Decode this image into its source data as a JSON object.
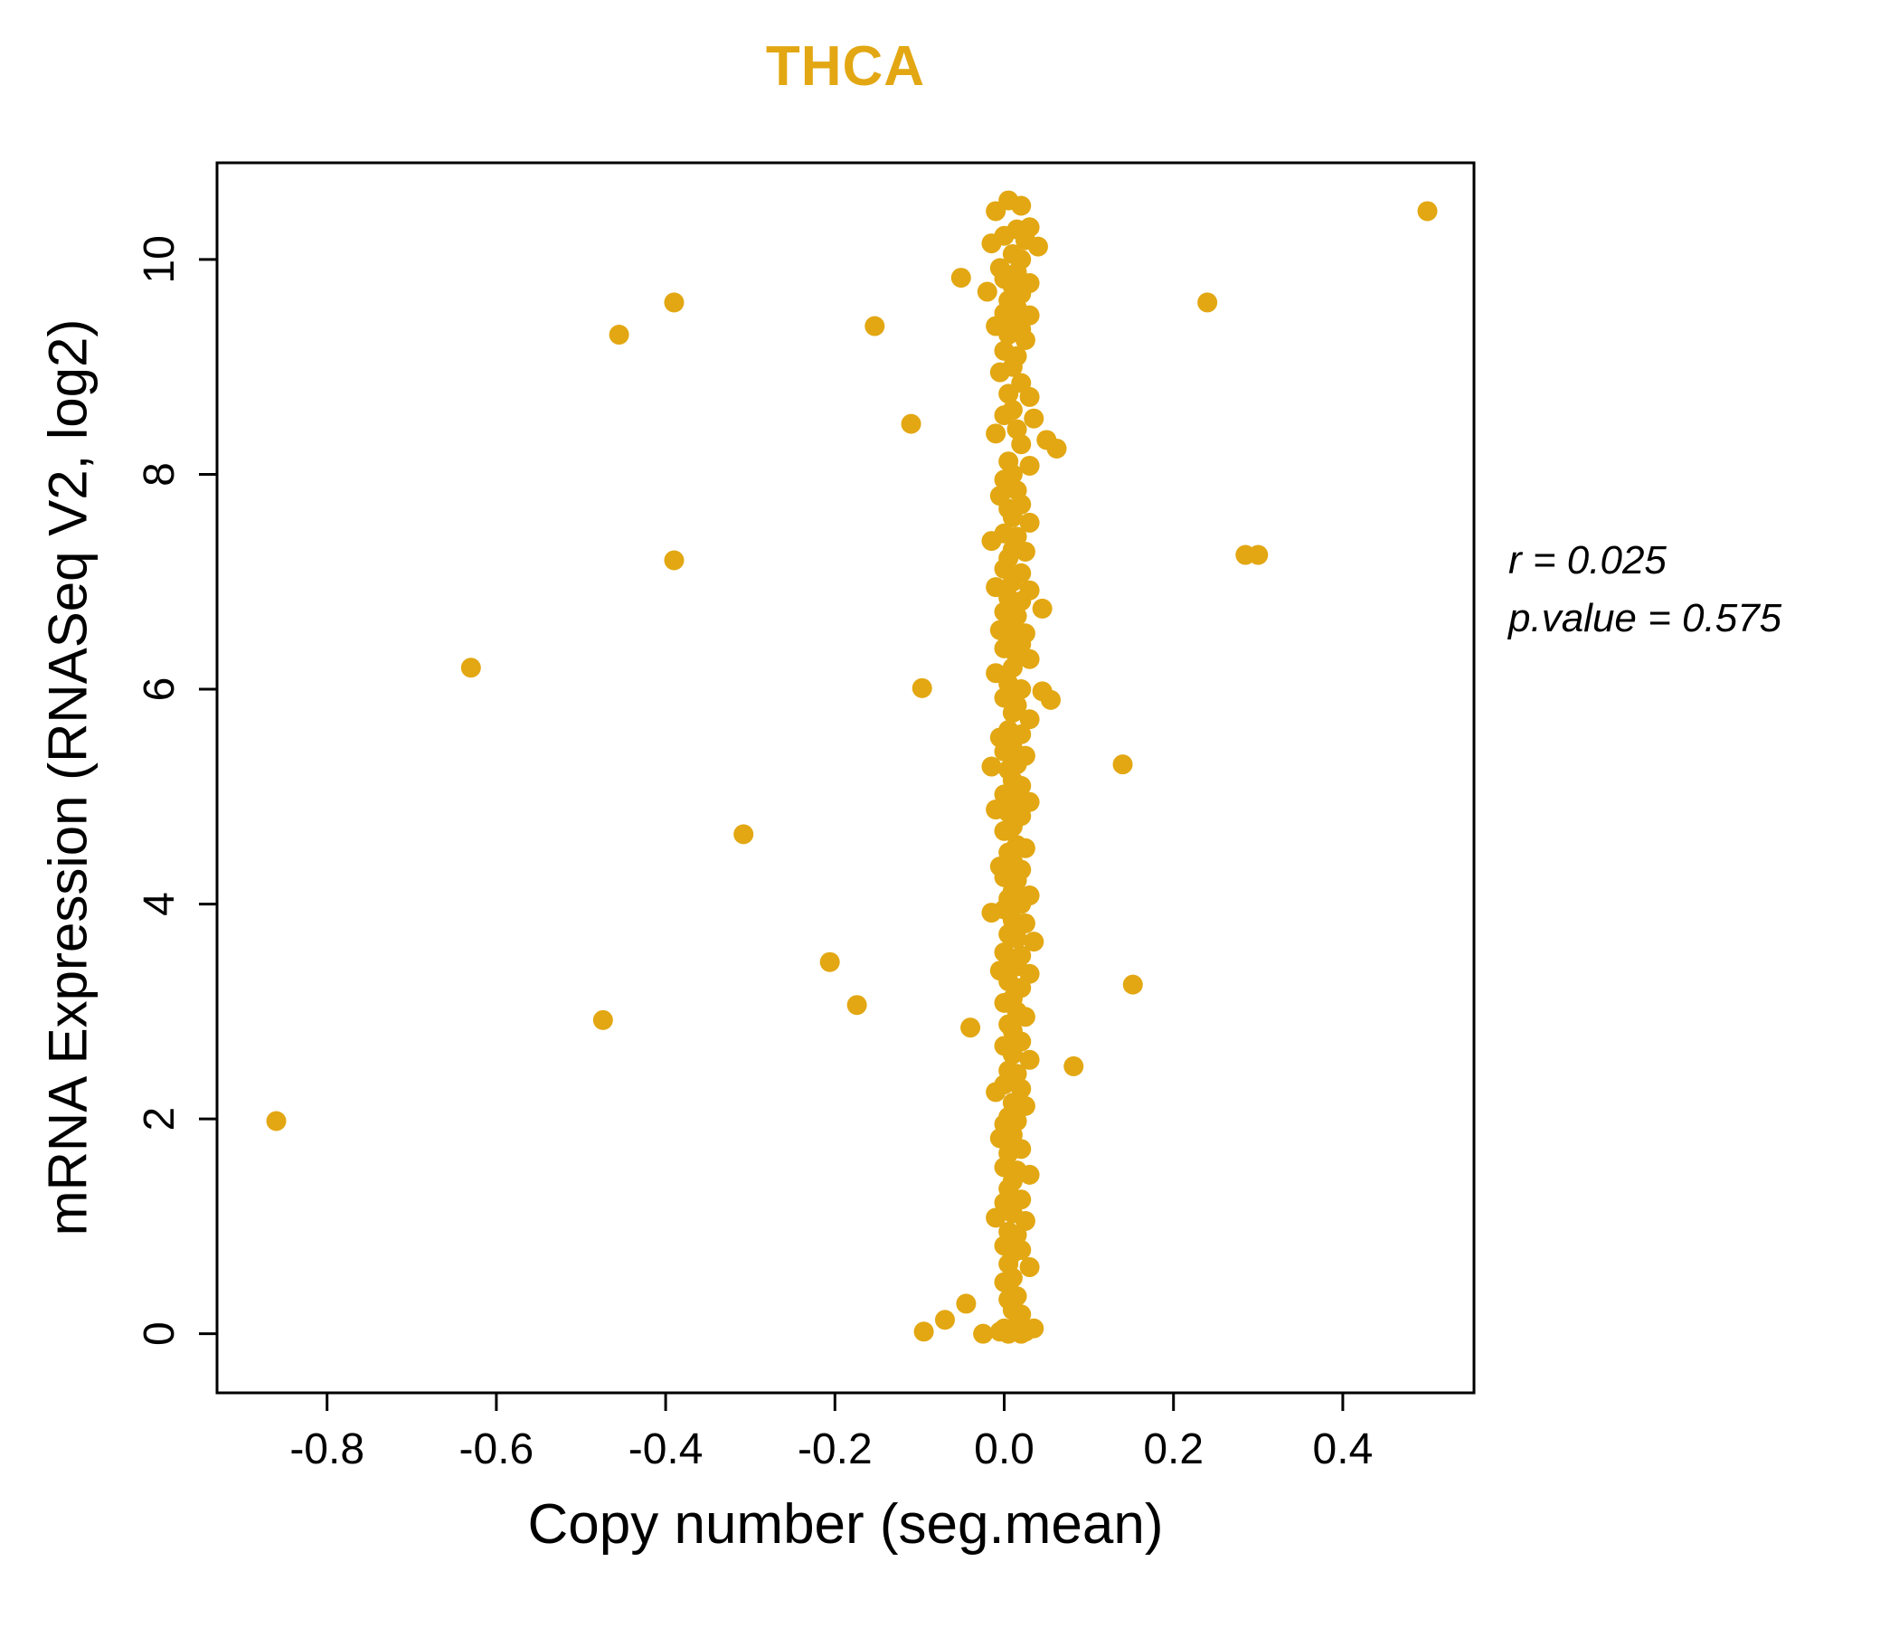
{
  "title": "THCA",
  "accent_color": "#E2A712",
  "axes": {
    "xlabel": "Copy number (seg.mean)",
    "ylabel": "mRNA Expression (RNASeq V2, log2)"
  },
  "annotation": {
    "line1": "r = 0.025",
    "line2": "p.value = 0.575"
  },
  "chart_data": {
    "type": "scatter",
    "title": "THCA",
    "xlabel": "Copy number (seg.mean)",
    "ylabel": "mRNA Expression (RNASeq V2, log2)",
    "legend": "none",
    "grid": false,
    "point_color": "#E2A712",
    "r": 0.025,
    "p_value": 0.575,
    "xlim": [
      -0.93,
      0.555
    ],
    "ylim": [
      -0.55,
      10.9
    ],
    "x_ticks": [
      -0.8,
      -0.6,
      -0.4,
      -0.2,
      0,
      0.2,
      0.4
    ],
    "x_tick_labels": [
      "-0.8",
      "-0.6",
      "-0.4",
      "-0.2",
      "0.0",
      "0.2",
      "0.4"
    ],
    "y_ticks": [
      0,
      2,
      4,
      6,
      8,
      10
    ],
    "y_tick_labels": [
      "0",
      "2",
      "4",
      "6",
      "8",
      "10"
    ],
    "points": [
      [
        -0.86,
        1.98
      ],
      [
        -0.63,
        6.2
      ],
      [
        -0.474,
        2.92
      ],
      [
        -0.455,
        9.3
      ],
      [
        -0.39,
        9.6
      ],
      [
        -0.39,
        7.2
      ],
      [
        -0.308,
        4.65
      ],
      [
        -0.206,
        3.46
      ],
      [
        -0.174,
        3.06
      ],
      [
        -0.153,
        9.38
      ],
      [
        -0.11,
        8.47
      ],
      [
        -0.097,
        6.01
      ],
      [
        -0.095,
        0.02
      ],
      [
        -0.07,
        0.13
      ],
      [
        -0.051,
        9.83
      ],
      [
        -0.045,
        0.28
      ],
      [
        -0.04,
        2.85
      ],
      [
        0.082,
        2.49
      ],
      [
        0.14,
        5.3
      ],
      [
        0.152,
        3.25
      ],
      [
        0.24,
        9.6
      ],
      [
        0.285,
        7.25
      ],
      [
        0.3,
        7.25
      ],
      [
        0.5,
        10.45
      ],
      [
        0.05,
        8.32
      ],
      [
        0.062,
        8.24
      ],
      [
        0.055,
        5.9
      ],
      [
        0.045,
        6.75
      ],
      [
        0.045,
        5.98
      ],
      [
        0.005,
        10.55
      ],
      [
        0.02,
        10.5
      ],
      [
        -0.01,
        10.45
      ],
      [
        0.03,
        10.3
      ],
      [
        0.015,
        10.28
      ],
      [
        0.0,
        10.22
      ],
      [
        0.025,
        10.18
      ],
      [
        -0.015,
        10.15
      ],
      [
        0.04,
        10.12
      ],
      [
        0.01,
        10.05
      ],
      [
        0.02,
        10.0
      ],
      [
        -0.005,
        9.92
      ],
      [
        0.015,
        9.88
      ],
      [
        0.0,
        9.82
      ],
      [
        0.03,
        9.78
      ],
      [
        0.01,
        9.75
      ],
      [
        -0.02,
        9.7
      ],
      [
        0.02,
        9.68
      ],
      [
        0.005,
        9.62
      ],
      [
        0.015,
        9.55
      ],
      [
        0.0,
        9.5
      ],
      [
        0.03,
        9.48
      ],
      [
        0.01,
        9.42
      ],
      [
        -0.01,
        9.38
      ],
      [
        0.02,
        9.35
      ],
      [
        0.005,
        9.3
      ],
      [
        0.025,
        9.25
      ],
      [
        0.0,
        9.15
      ],
      [
        0.015,
        9.1
      ],
      [
        0.01,
        9.0
      ],
      [
        -0.005,
        8.95
      ],
      [
        0.02,
        8.85
      ],
      [
        0.005,
        8.75
      ],
      [
        0.03,
        8.72
      ],
      [
        0.01,
        8.6
      ],
      [
        0.0,
        8.55
      ],
      [
        0.035,
        8.52
      ],
      [
        0.015,
        8.42
      ],
      [
        -0.01,
        8.38
      ],
      [
        0.02,
        8.28
      ],
      [
        0.005,
        8.12
      ],
      [
        0.03,
        8.08
      ],
      [
        0.01,
        8.0
      ],
      [
        0.0,
        7.95
      ],
      [
        0.015,
        7.85
      ],
      [
        -0.005,
        7.8
      ],
      [
        0.02,
        7.72
      ],
      [
        0.005,
        7.68
      ],
      [
        0.01,
        7.6
      ],
      [
        0.03,
        7.55
      ],
      [
        0.0,
        7.45
      ],
      [
        0.015,
        7.42
      ],
      [
        -0.015,
        7.38
      ],
      [
        0.01,
        7.3
      ],
      [
        0.025,
        7.28
      ],
      [
        0.005,
        7.22
      ],
      [
        0.0,
        7.12
      ],
      [
        0.02,
        7.08
      ],
      [
        0.01,
        7.0
      ],
      [
        -0.01,
        6.95
      ],
      [
        0.03,
        6.92
      ],
      [
        0.005,
        6.85
      ],
      [
        0.02,
        6.82
      ],
      [
        0.0,
        6.72
      ],
      [
        0.015,
        6.68
      ],
      [
        0.01,
        6.6
      ],
      [
        -0.005,
        6.55
      ],
      [
        0.025,
        6.52
      ],
      [
        0.005,
        6.45
      ],
      [
        0.02,
        6.42
      ],
      [
        0.0,
        6.38
      ],
      [
        0.015,
        6.3
      ],
      [
        0.03,
        6.28
      ],
      [
        0.01,
        6.2
      ],
      [
        -0.01,
        6.15
      ],
      [
        0.005,
        6.05
      ],
      [
        0.02,
        6.0
      ],
      [
        0.0,
        5.92
      ],
      [
        0.015,
        5.85
      ],
      [
        0.01,
        5.78
      ],
      [
        0.03,
        5.72
      ],
      [
        0.005,
        5.62
      ],
      [
        0.02,
        5.58
      ],
      [
        -0.005,
        5.55
      ],
      [
        0.01,
        5.45
      ],
      [
        0.0,
        5.42
      ],
      [
        0.025,
        5.38
      ],
      [
        0.015,
        5.3
      ],
      [
        0.005,
        5.25
      ],
      [
        -0.015,
        5.28
      ],
      [
        0.01,
        5.15
      ],
      [
        0.02,
        5.1
      ],
      [
        0.0,
        5.02
      ],
      [
        0.015,
        4.98
      ],
      [
        0.03,
        4.95
      ],
      [
        0.005,
        4.85
      ],
      [
        0.02,
        4.82
      ],
      [
        -0.01,
        4.88
      ],
      [
        0.01,
        4.72
      ],
      [
        0.0,
        4.68
      ],
      [
        0.015,
        4.55
      ],
      [
        0.025,
        4.52
      ],
      [
        0.005,
        4.48
      ],
      [
        0.01,
        4.4
      ],
      [
        -0.005,
        4.35
      ],
      [
        0.02,
        4.32
      ],
      [
        0.0,
        4.25
      ],
      [
        0.015,
        4.22
      ],
      [
        0.01,
        4.12
      ],
      [
        0.03,
        4.08
      ],
      [
        0.005,
        4.05
      ],
      [
        0.02,
        4.0
      ],
      [
        0.0,
        3.95
      ],
      [
        -0.015,
        3.92
      ],
      [
        0.01,
        3.85
      ],
      [
        0.025,
        3.82
      ],
      [
        0.005,
        3.72
      ],
      [
        0.015,
        3.68
      ],
      [
        0.035,
        3.65
      ],
      [
        0.0,
        3.55
      ],
      [
        0.02,
        3.52
      ],
      [
        0.01,
        3.48
      ],
      [
        0.015,
        3.42
      ],
      [
        -0.005,
        3.38
      ],
      [
        0.03,
        3.35
      ],
      [
        0.005,
        3.28
      ],
      [
        0.02,
        3.22
      ],
      [
        0.01,
        3.12
      ],
      [
        0.0,
        3.08
      ],
      [
        0.015,
        3.0
      ],
      [
        0.025,
        2.95
      ],
      [
        0.005,
        2.88
      ],
      [
        0.01,
        2.82
      ],
      [
        0.02,
        2.72
      ],
      [
        0.0,
        2.68
      ],
      [
        0.01,
        2.6
      ],
      [
        0.03,
        2.55
      ],
      [
        0.005,
        2.45
      ],
      [
        0.015,
        2.42
      ],
      [
        0.0,
        2.32
      ],
      [
        0.02,
        2.28
      ],
      [
        -0.01,
        2.25
      ],
      [
        0.01,
        2.15
      ],
      [
        0.025,
        2.12
      ],
      [
        0.005,
        2.02
      ],
      [
        0.015,
        1.98
      ],
      [
        0.0,
        1.95
      ],
      [
        0.01,
        1.85
      ],
      [
        -0.005,
        1.82
      ],
      [
        0.02,
        1.72
      ],
      [
        0.005,
        1.68
      ],
      [
        0.0,
        1.55
      ],
      [
        0.015,
        1.52
      ],
      [
        0.03,
        1.48
      ],
      [
        0.01,
        1.42
      ],
      [
        0.005,
        1.35
      ],
      [
        0.02,
        1.25
      ],
      [
        0.0,
        1.22
      ],
      [
        0.01,
        1.12
      ],
      [
        -0.01,
        1.08
      ],
      [
        0.025,
        1.05
      ],
      [
        0.005,
        0.95
      ],
      [
        0.015,
        0.92
      ],
      [
        0.0,
        0.82
      ],
      [
        0.02,
        0.78
      ],
      [
        0.01,
        0.75
      ],
      [
        0.005,
        0.65
      ],
      [
        0.03,
        0.62
      ],
      [
        0.01,
        0.52
      ],
      [
        0.0,
        0.48
      ],
      [
        0.015,
        0.35
      ],
      [
        0.005,
        0.32
      ],
      [
        0.01,
        0.22
      ],
      [
        0.02,
        0.18
      ],
      [
        0.0,
        0.05
      ],
      [
        0.01,
        0.02
      ],
      [
        0.025,
        0.02
      ],
      [
        0.015,
        0.08
      ],
      [
        -0.005,
        0.02
      ],
      [
        0.035,
        0.05
      ],
      [
        0.005,
        0.0
      ],
      [
        0.02,
        0.0
      ],
      [
        -0.025,
        0.0
      ]
    ]
  }
}
